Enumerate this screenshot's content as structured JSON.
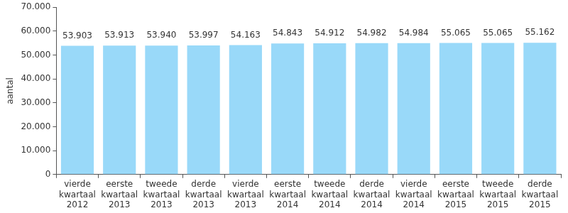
{
  "chart_data": {
    "type": "bar",
    "y_label": "aantal",
    "categories": [
      "vierde kwartaal 2012",
      "eerste kwartaal 2013",
      "tweede kwartaal 2013",
      "derde kwartaal 2013",
      "vierde kwartaal 2013",
      "eerste kwartaal 2014",
      "tweede kwartaal 2014",
      "derde kwartaal 2014",
      "vierde kwartaal 2014",
      "eerste kwartaal 2015",
      "tweede kwartaal 2015",
      "derde kwartaal 2015"
    ],
    "values": [
      53903,
      53913,
      53940,
      53997,
      54163,
      54843,
      54912,
      54982,
      54984,
      55065,
      55065,
      55162
    ],
    "value_labels": [
      "53.903",
      "53.913",
      "53.940",
      "53.997",
      "54.163",
      "54.843",
      "54.912",
      "54.982",
      "54.984",
      "55.065",
      "55.065",
      "55.162"
    ],
    "data_labels": true,
    "color": "#99d9f9",
    "ylim": [
      0,
      70000
    ],
    "yticks": [
      0,
      {
        "value": 10000,
        "label": "10.000"
      },
      {
        "value": 20000,
        "label": "20.000"
      },
      {
        "value": 30000,
        "label": "30.000"
      },
      {
        "value": 40000,
        "label": "40.000"
      },
      {
        "value": 50000,
        "label": "50.000"
      },
      {
        "value": 60000,
        "label": "60.000"
      },
      {
        "value": 70000,
        "label": "70.000"
      }
    ],
    "grid": false
  }
}
